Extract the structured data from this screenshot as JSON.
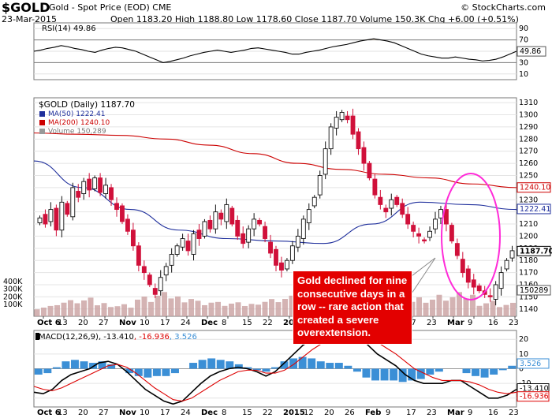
{
  "header": {
    "symbol": "$GOLD",
    "name": "Gold - Spot Price (EOD)",
    "exchange": "CME",
    "date": "23-Mar-2015",
    "ohlc_line": "Open 1183.20  High 1188.80  Low 1178.60  Close 1187.70  Volume 150.3K  Chg +6.00 (+0.51%)",
    "watermark": "© StockCharts.com"
  },
  "annotation": {
    "text": "Gold declined for nine consecutive days in a row -- rare action that created a severe overextension."
  },
  "colors": {
    "up": "#111111",
    "down": "#d0103a",
    "ma50": "#1f2f9c",
    "ma200": "#cc0000",
    "volume": "#c9a0a0",
    "ellipse": "#ff2bd8",
    "callout": "#e30000",
    "macd": "#000000",
    "signal": "#dd0000",
    "hist": "#3b8fd6"
  },
  "chart_data": [
    {
      "type": "line",
      "title": "RSI(14) 49.86",
      "series": [
        {
          "name": "RSI(14)",
          "values": [
            50,
            52,
            55,
            57,
            60,
            58,
            55,
            53,
            50,
            48,
            52,
            55,
            57,
            56,
            53,
            50,
            45,
            40,
            35,
            30,
            32,
            35,
            38,
            42,
            45,
            48,
            50,
            52,
            50,
            48,
            50,
            52,
            55,
            56,
            54,
            52,
            50,
            48,
            45,
            45,
            48,
            50,
            52,
            55,
            58,
            60,
            62,
            65,
            68,
            70,
            72,
            70,
            68,
            65,
            60,
            55,
            50,
            45,
            42,
            40,
            38,
            38,
            40,
            38,
            36,
            35,
            33,
            34,
            36,
            40,
            45,
            50
          ]
        }
      ],
      "ylim": [
        0,
        100
      ],
      "ticks": [
        10,
        30,
        50,
        70,
        90
      ],
      "current": "49.86"
    },
    {
      "type": "line",
      "title": "$GOLD (Daily) 1187.70",
      "x_labels": [
        "Oct 6",
        "13",
        "20",
        "27",
        "Nov",
        "10",
        "17",
        "24",
        "Dec",
        "8",
        "15",
        "22",
        "2015",
        "12",
        "20",
        "26",
        "Feb",
        "9",
        "17",
        "23",
        "Mar",
        "9",
        "16",
        "23"
      ],
      "series": [
        {
          "name": "$GOLD (Daily)",
          "values": [
            1215,
            1210,
            1222,
            1205,
            1228,
            1218,
            1240,
            1232,
            1245,
            1238,
            1248,
            1236,
            1242,
            1230,
            1222,
            1212,
            1204,
            1192,
            1176,
            1170,
            1160,
            1152,
            1166,
            1175,
            1185,
            1192,
            1198,
            1188,
            1202,
            1198,
            1212,
            1206,
            1220,
            1214,
            1226,
            1210,
            1200,
            1194,
            1206,
            1214,
            1210,
            1198,
            1186,
            1176,
            1172,
            1180,
            1192,
            1200,
            1214,
            1222,
            1232,
            1250,
            1272,
            1290,
            1298,
            1302,
            1296,
            1284,
            1272,
            1260,
            1248,
            1234,
            1226,
            1220,
            1230,
            1226,
            1218,
            1210,
            1204,
            1200,
            1196,
            1204,
            1214,
            1222,
            1210,
            1196,
            1184,
            1170,
            1162,
            1158,
            1155,
            1152,
            1150,
            1160,
            1170,
            1180,
            1188
          ]
        },
        {
          "name": "MA(50)",
          "values": [
            1262,
            1240,
            1222,
            1205,
            1198,
            1196,
            1194,
            1210,
            1228,
            1226,
            1222
          ]
        },
        {
          "name": "MA(200)",
          "values": [
            1285,
            1284,
            1283,
            1280,
            1275,
            1268,
            1260,
            1255,
            1251,
            1248,
            1243,
            1240
          ]
        },
        {
          "name": "Volume",
          "values": [
            120,
            180,
            200,
            160,
            140,
            220,
            260,
            240,
            180,
            160,
            150,
            200,
            230,
            250,
            210,
            170,
            160,
            150,
            200,
            220,
            240,
            260,
            180,
            150
          ]
        }
      ],
      "price_ticks": [
        1140,
        1150,
        1160,
        1170,
        1180,
        1190,
        1200,
        1210,
        1220,
        1230,
        1240,
        1250,
        1260,
        1270,
        1280,
        1290,
        1300,
        1310
      ],
      "volume_ticks": [
        "100K",
        "200K",
        "300K",
        "400K"
      ],
      "legend": [
        "$GOLD (Daily) 1187.70",
        "MA(50) 1222.41",
        "MA(200) 1240.10",
        "Volume 150,289"
      ],
      "last_labels": {
        "ma200": "1240.10",
        "ma50": "1222.41",
        "price": "1187.70",
        "volume": "150289"
      }
    },
    {
      "type": "line",
      "title": "MACD(12,26,9)",
      "legend": [
        "MACD(12,26,9)",
        "-13.410",
        "-16.936",
        "3.526"
      ],
      "series": [
        {
          "name": "MACD",
          "values": [
            -16,
            -17,
            -14,
            -8,
            -4,
            -2,
            0,
            4,
            5,
            3,
            -2,
            -8,
            -14,
            -18,
            -22,
            -24,
            -22,
            -16,
            -10,
            -5,
            -2,
            0,
            1,
            0,
            -2,
            -5,
            -2,
            4,
            10,
            16,
            20,
            22,
            24,
            26,
            26,
            22,
            16,
            10,
            6,
            2,
            -4,
            -8,
            -10,
            -10,
            -10,
            -8,
            -8,
            -12,
            -16,
            -20,
            -20,
            -18,
            -14
          ]
        },
        {
          "name": "Signal",
          "values": [
            -12,
            -14,
            -15,
            -13,
            -10,
            -7,
            -4,
            -1,
            2,
            3,
            1,
            -3,
            -8,
            -13,
            -17,
            -21,
            -22,
            -20,
            -16,
            -12,
            -8,
            -5,
            -2,
            -1,
            -1,
            -3,
            -3,
            -1,
            3,
            8,
            13,
            17,
            20,
            22,
            24,
            24,
            22,
            18,
            14,
            10,
            5,
            0,
            -3,
            -6,
            -8,
            -8,
            -8,
            -9,
            -11,
            -14,
            -16,
            -17,
            -16
          ]
        },
        {
          "name": "Histogram",
          "values": [
            -4,
            -3,
            1,
            5,
            6,
            5,
            4,
            5,
            3,
            0,
            -3,
            -5,
            -6,
            -5,
            -5,
            -3,
            0,
            4,
            6,
            7,
            6,
            5,
            3,
            1,
            -1,
            -2,
            1,
            5,
            7,
            8,
            7,
            5,
            4,
            4,
            2,
            -2,
            -6,
            -8,
            -8,
            -8,
            -9,
            -8,
            -7,
            -4,
            -2,
            0,
            0,
            -3,
            -5,
            -6,
            -4,
            -1,
            2
          ]
        }
      ],
      "ticks": [
        -20,
        -10,
        0,
        10,
        20
      ],
      "last_labels": {
        "hist": "3.526",
        "macd": "-13.410",
        "signal": "-16.936"
      },
      "x_labels": [
        "Oct 6",
        "13",
        "20",
        "27",
        "Nov",
        "10",
        "17",
        "24",
        "Dec",
        "8",
        "15",
        "22",
        "2015",
        "12",
        "20",
        "26",
        "Feb",
        "9",
        "17",
        "23",
        "Mar",
        "9",
        "16",
        "23"
      ]
    }
  ]
}
